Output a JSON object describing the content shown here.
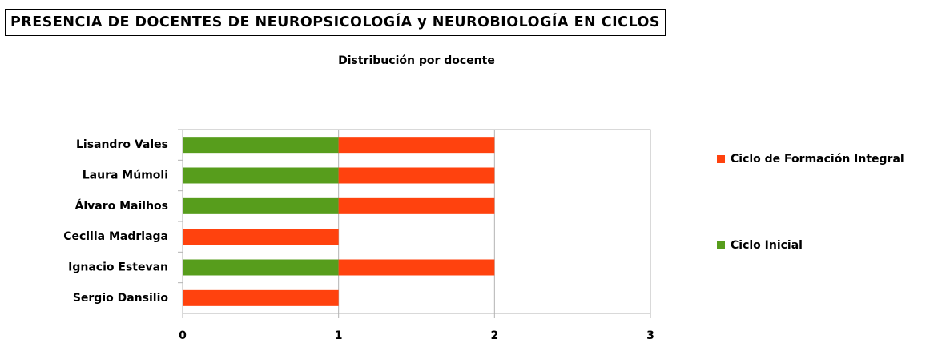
{
  "header": {
    "title": "PRESENCIA DE DOCENTES DE NEUROPSICOLOGÍA y NEUROBIOLOGÍA EN CICLOS"
  },
  "chart_data": {
    "type": "stacked_barh",
    "title": "Distribución por docente",
    "categories": [
      "Lisandro Vales",
      "Laura Múmoli",
      "Álvaro Mailhos",
      "Cecilia Madriaga",
      "Ignacio Estevan",
      "Sergio Dansilio"
    ],
    "series": [
      {
        "name": "Ciclo Inicial",
        "color": "#579d1c",
        "values": [
          1,
          1,
          1,
          0,
          1,
          0
        ]
      },
      {
        "name": "Ciclo de Formación Integral",
        "color": "#ff420e",
        "values": [
          1,
          1,
          1,
          1,
          1,
          1
        ]
      }
    ],
    "xlim": [
      0,
      3
    ],
    "xticks": [
      0,
      1,
      2,
      3
    ],
    "grid": true,
    "legend": "right"
  }
}
